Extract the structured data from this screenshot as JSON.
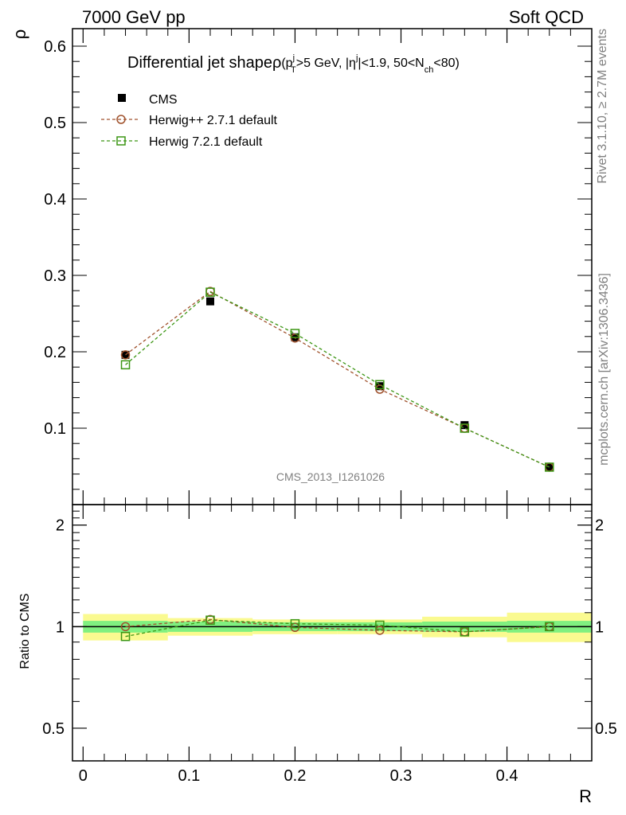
{
  "header": {
    "left": "7000 GeV pp",
    "right": "Soft QCD"
  },
  "side": {
    "rivet": "Rivet 3.1.10, ≥ 2.7M events",
    "mcplots": "mcplots.cern.ch [arXiv:1306.3436]"
  },
  "title": {
    "main": "Differential jet shapeρ",
    "pt_a": "(p",
    "pt_sub": "T",
    "pt_sup": "j",
    "pt_b": ">5 GeV, |η",
    "eta_sup": "j",
    "pt_c": "|<1.9, 50<N",
    "nch_sub": "ch",
    "pt_d": "<80)"
  },
  "analysis_id": "CMS_2013_I1261026",
  "colors": {
    "data": "#000000",
    "herwig_pp": "#a0522d",
    "herwig7": "#3c9614",
    "band_inner": "#80f080",
    "band_outer": "#fafa90",
    "watermark": "#808080"
  },
  "chart_data": {
    "type": "scatter",
    "xlabel": "R",
    "ylabel": "ρ",
    "ratio_ylabel": "Ratio to CMS",
    "xlim": [
      -0.01,
      0.48
    ],
    "ylim": [
      0,
      0.6
    ],
    "ratio_ylim": [
      0.4,
      2.3
    ],
    "ratio_scale": "log",
    "x_ticks": [
      "0",
      "0.1",
      "0.2",
      "0.3",
      "0.4"
    ],
    "y_ticks": [
      "0.1",
      "0.2",
      "0.3",
      "0.4",
      "0.5",
      "0.6"
    ],
    "ratio_ticks": [
      "0.5",
      "1",
      "2"
    ],
    "legend_position": "top-left",
    "series": [
      {
        "name": "CMS",
        "marker": "filled-square",
        "x": [
          0.04,
          0.12,
          0.2,
          0.28,
          0.36,
          0.44
        ],
        "xerr": [
          0.04,
          0.04,
          0.04,
          0.04,
          0.04,
          0.04
        ],
        "y": [
          0.196,
          0.266,
          0.219,
          0.155,
          0.104,
          0.049
        ],
        "ratio_band_inner": [
          0.04,
          0.035,
          0.03,
          0.03,
          0.035,
          0.04
        ],
        "ratio_band_outer": [
          0.09,
          0.06,
          0.05,
          0.05,
          0.07,
          0.1
        ]
      },
      {
        "name": "Herwig++ 2.7.1 default",
        "marker": "open-circle",
        "line": "dashed",
        "x": [
          0.04,
          0.12,
          0.2,
          0.28,
          0.36,
          0.44
        ],
        "y": [
          0.196,
          0.279,
          0.218,
          0.151,
          0.1,
          0.049
        ],
        "ratio": [
          1.0,
          1.05,
          0.995,
          0.975,
          0.965,
          1.0
        ]
      },
      {
        "name": "Herwig 7.2.1 default",
        "marker": "open-square",
        "line": "dashed",
        "x": [
          0.04,
          0.12,
          0.2,
          0.28,
          0.36,
          0.44
        ],
        "y": [
          0.183,
          0.278,
          0.224,
          0.157,
          0.1,
          0.049
        ],
        "ratio": [
          0.935,
          1.045,
          1.02,
          1.01,
          0.965,
          1.0
        ]
      }
    ]
  }
}
